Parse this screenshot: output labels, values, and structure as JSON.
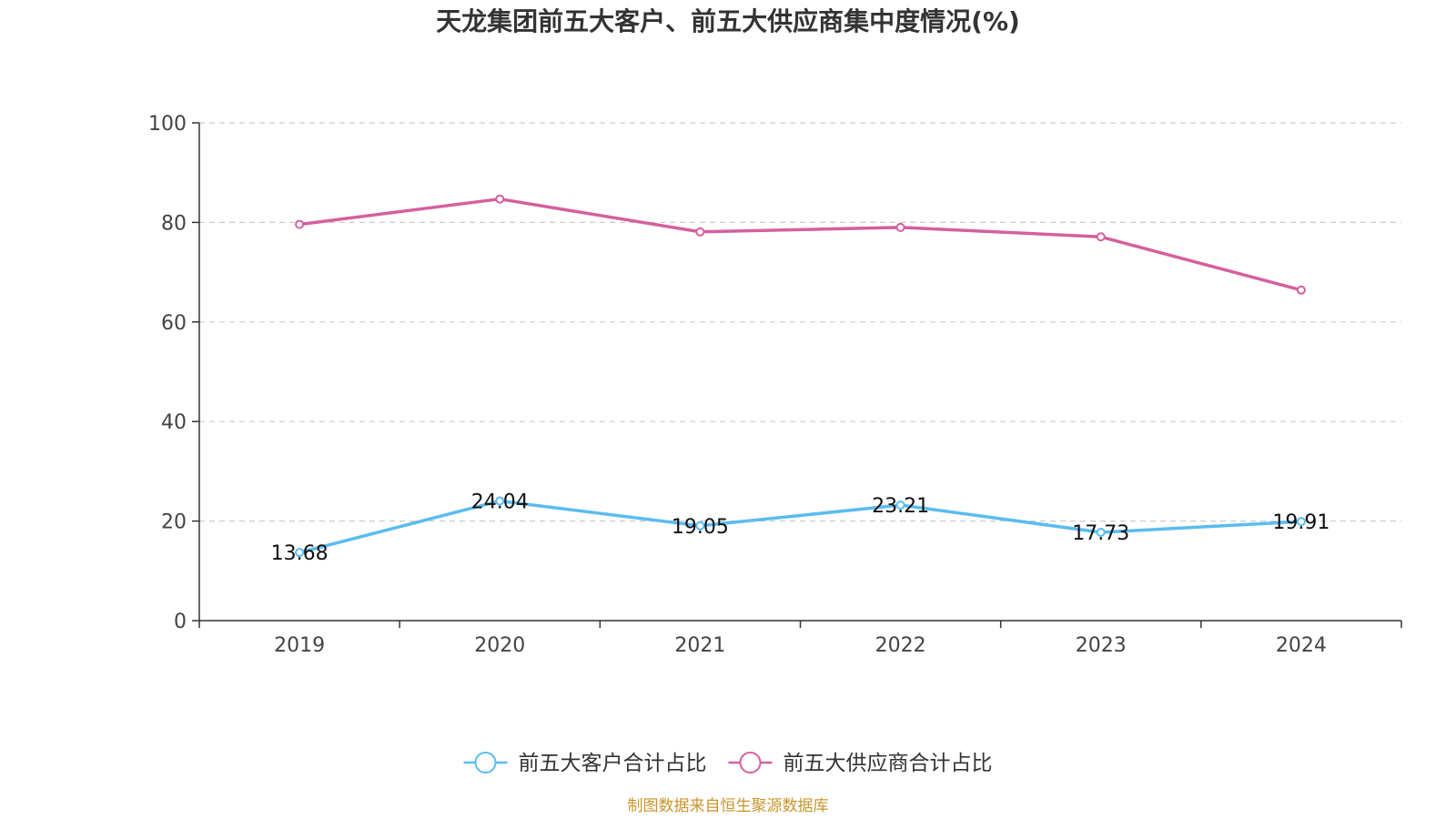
{
  "chart_data": {
    "type": "line",
    "title": "天龙集团前五大客户、前五大供应商集中度情况(%)",
    "categories": [
      "2019",
      "2020",
      "2021",
      "2022",
      "2023",
      "2024"
    ],
    "ylim": [
      0,
      100
    ],
    "yticks": [
      0,
      20,
      40,
      60,
      80,
      100
    ],
    "grid": true,
    "legend_position": "bottom",
    "series": [
      {
        "name": "前五大客户合计占比",
        "color": "#5bbcf0",
        "values": [
          13.68,
          24.04,
          19.05,
          23.21,
          17.73,
          19.91
        ],
        "show_labels": true,
        "labels": [
          "13.68",
          "24.04",
          "19.05",
          "23.21",
          "17.73",
          "19.91"
        ]
      },
      {
        "name": "前五大供应商合计占比",
        "color": "#d4609f",
        "values": [
          79.6,
          84.7,
          78.1,
          79.0,
          77.1,
          66.4
        ],
        "show_labels": false
      }
    ],
    "source_note": "制图数据来自恒生聚源数据库"
  }
}
